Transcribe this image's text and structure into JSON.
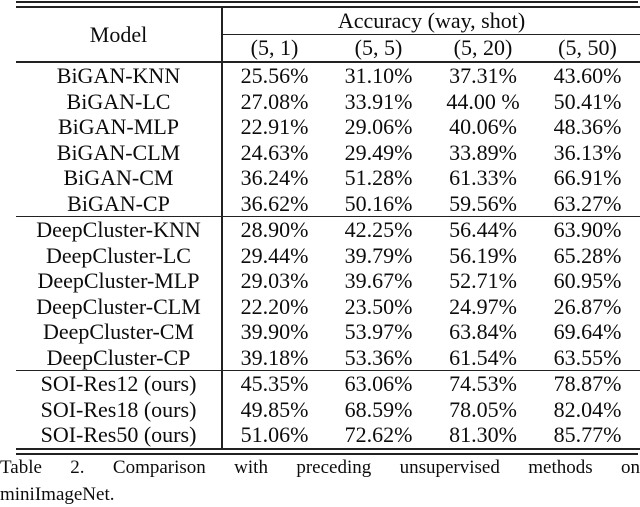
{
  "colors": {
    "background": "#ffffff",
    "text": "#0c0c0c",
    "rule": "#222222"
  },
  "table": {
    "header": {
      "model": "Model",
      "accuracy": "Accuracy (way, shot)",
      "shots": [
        "(5, 1)",
        "(5, 5)",
        "(5, 20)",
        "(5, 50)"
      ]
    },
    "groups": [
      {
        "rows": [
          {
            "model": "BiGAN-KNN",
            "values": [
              "25.56%",
              "31.10%",
              "37.31%",
              "43.60%"
            ]
          },
          {
            "model": "BiGAN-LC",
            "values": [
              "27.08%",
              "33.91%",
              "44.00 %",
              "50.41%"
            ]
          },
          {
            "model": "BiGAN-MLP",
            "values": [
              "22.91%",
              "29.06%",
              "40.06%",
              "48.36%"
            ]
          },
          {
            "model": "BiGAN-CLM",
            "values": [
              "24.63%",
              "29.49%",
              "33.89%",
              "36.13%"
            ]
          },
          {
            "model": "BiGAN-CM",
            "values": [
              "36.24%",
              "51.28%",
              "61.33%",
              "66.91%"
            ]
          },
          {
            "model": "BiGAN-CP",
            "values": [
              "36.62%",
              "50.16%",
              "59.56%",
              "63.27%"
            ]
          }
        ]
      },
      {
        "rows": [
          {
            "model": "DeepCluster-KNN",
            "values": [
              "28.90%",
              "42.25%",
              "56.44%",
              "63.90%"
            ]
          },
          {
            "model": "DeepCluster-LC",
            "values": [
              "29.44%",
              "39.79%",
              "56.19%",
              "65.28%"
            ]
          },
          {
            "model": "DeepCluster-MLP",
            "values": [
              "29.03%",
              "39.67%",
              "52.71%",
              "60.95%"
            ]
          },
          {
            "model": "DeepCluster-CLM",
            "values": [
              "22.20%",
              "23.50%",
              "24.97%",
              "26.87%"
            ]
          },
          {
            "model": "DeepCluster-CM",
            "values": [
              "39.90%",
              "53.97%",
              "63.84%",
              "69.64%"
            ]
          },
          {
            "model": "DeepCluster-CP",
            "values": [
              "39.18%",
              "53.36%",
              "61.54%",
              "63.55%"
            ]
          }
        ]
      },
      {
        "rows": [
          {
            "model": "SOI-Res12 (ours)",
            "values": [
              "45.35%",
              "63.06%",
              "74.53%",
              "78.87%"
            ]
          },
          {
            "model": "SOI-Res18 (ours)",
            "values": [
              "49.85%",
              "68.59%",
              "78.05%",
              "82.04%"
            ]
          },
          {
            "model": "SOI-Res50 (ours)",
            "values": [
              "51.06%",
              "72.62%",
              "81.30%",
              "85.77%"
            ]
          }
        ]
      }
    ]
  },
  "caption": {
    "line1": "Table 2. Comparison with preceding unsupervised methods on",
    "line2": "miniImageNet."
  }
}
